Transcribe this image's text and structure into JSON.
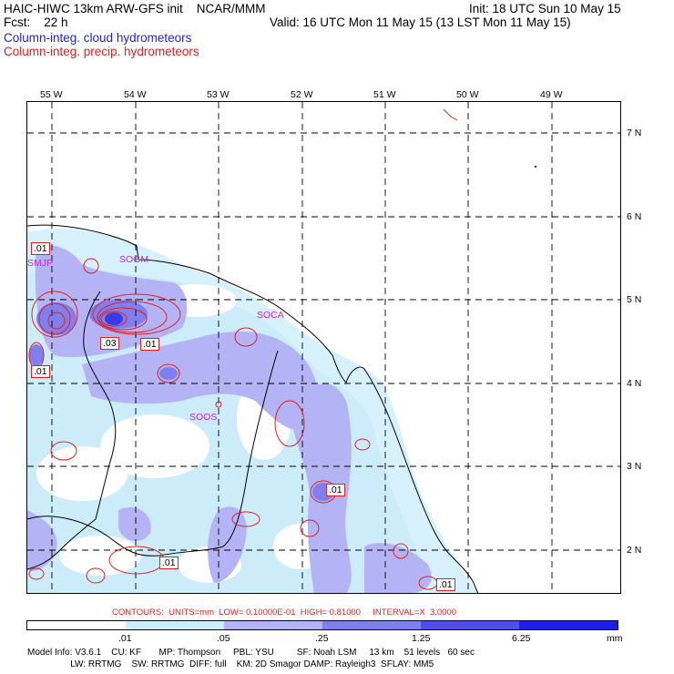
{
  "header": {
    "title": "HAIC-HIWC 13km ARW-GFS init    NCAR/MMM",
    "fcst": "Fcst:    22 h",
    "init": "Init: 18 UTC Sun 10 May 15",
    "valid": "Valid: 16 UTC Mon 11 May 15 (13 LST Mon 11 May 15)",
    "field1": "Column-integ. cloud hydrometeors",
    "field2": "Column-integ. precip. hydrometeors"
  },
  "map": {
    "lon_labels": [
      "55 W",
      "54 W",
      "53 W",
      "52 W",
      "51 W",
      "50 W",
      "49 W"
    ],
    "lat_labels": [
      "7 N",
      "6 N",
      "5 N",
      "4 N",
      "3 N",
      "2 N"
    ],
    "stations": [
      "SMJP",
      "SOGM",
      "SOCA",
      "SOOS"
    ],
    "contour_labels": [
      ".01",
      ".03",
      ".01",
      ".01",
      ".01",
      ".01",
      ".01"
    ]
  },
  "contour_info": "CONTOURS:  UNITS=mm  LOW= 0.10000E-01  HIGH= 0.81000     INTERVAL=X  3.0000",
  "colorbar": {
    "labels": [
      ".01",
      ".05",
      ".25",
      "1.25",
      "6.25",
      "mm"
    ],
    "colors": [
      "#ffffff",
      "#cceeff",
      "#b3b3f5",
      "#7f7ff0",
      "#5050e8",
      "#1e1ee6"
    ]
  },
  "footer": {
    "line1": "Model Info: V3.6.1    CU: KF       MP: Thompson     PBL: YSU         SF: Noah LSM     13 km    51 levels   60 sec",
    "line2": "                 LW: RRTMG    SW: RRTMG  DIFF: full    KM: 2D Smagor DAMP: Rayleigh3  SFLAY: MM5"
  },
  "colors": {
    "cloud_text": "#1e1ee6",
    "precip_text": "#e02020",
    "contour": "#e02020",
    "station": "#cc22cc"
  }
}
